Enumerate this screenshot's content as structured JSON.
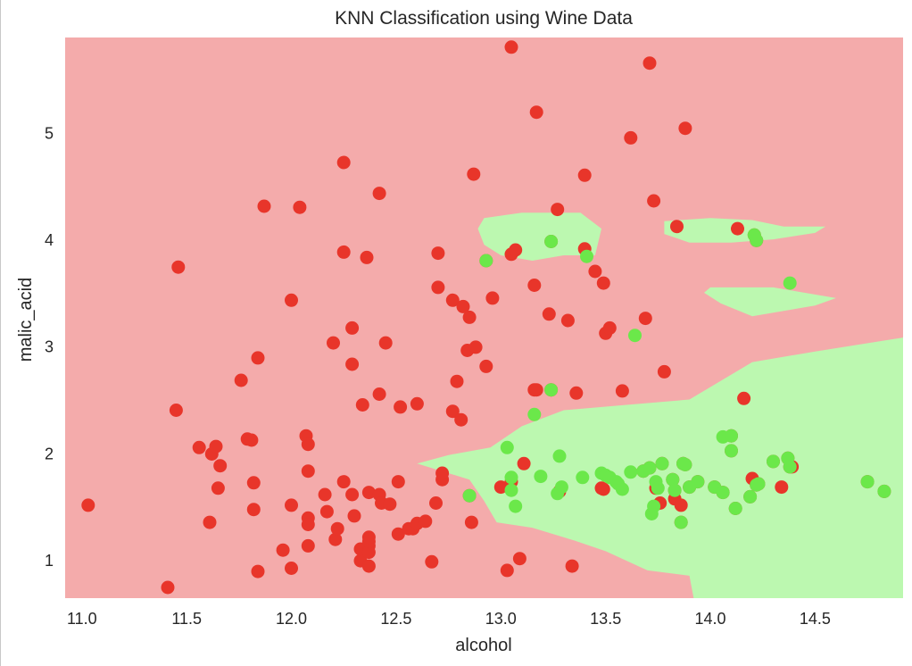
{
  "chart_data": {
    "type": "scatter",
    "title": "KNN Classification using Wine Data",
    "xlabel": "alcohol",
    "ylabel": "malic_acid",
    "xlim": [
      10.92,
      14.92
    ],
    "ylim": [
      0.64,
      5.89
    ],
    "xticks": [
      "11.0",
      "11.5",
      "12.0",
      "12.5",
      "13.0",
      "13.5",
      "14.0",
      "14.5"
    ],
    "xtick_values": [
      11.0,
      11.5,
      12.0,
      12.5,
      13.0,
      13.5,
      14.0,
      14.5
    ],
    "yticks": [
      "1",
      "2",
      "3",
      "4",
      "5"
    ],
    "ytick_values": [
      1,
      2,
      3,
      4,
      5
    ],
    "grid": false,
    "colors": {
      "region_class_a": "#f4abab",
      "region_class_b": "#bcf8b0",
      "points_class_a": "#e8352a",
      "points_class_b": "#6be84a"
    },
    "decision_regions": {
      "class_b_polygons": [
        [
          [
            12.75,
            1.98
          ],
          [
            12.95,
            2.05
          ],
          [
            13.1,
            2.25
          ],
          [
            13.3,
            2.4
          ],
          [
            13.6,
            2.45
          ],
          [
            13.9,
            2.5
          ],
          [
            14.2,
            2.85
          ],
          [
            14.5,
            2.95
          ],
          [
            14.92,
            3.08
          ],
          [
            14.92,
            0.64
          ],
          [
            13.92,
            0.64
          ],
          [
            13.9,
            0.85
          ],
          [
            13.7,
            0.9
          ],
          [
            13.5,
            1.08
          ],
          [
            13.35,
            1.18
          ],
          [
            13.15,
            1.3
          ],
          [
            12.98,
            1.35
          ],
          [
            12.92,
            1.55
          ],
          [
            12.85,
            1.75
          ],
          [
            12.6,
            1.9
          ]
        ],
        [
          [
            12.92,
            4.2
          ],
          [
            13.1,
            4.25
          ],
          [
            13.38,
            4.25
          ],
          [
            13.48,
            4.1
          ],
          [
            13.45,
            3.85
          ],
          [
            13.3,
            3.85
          ],
          [
            13.15,
            3.8
          ],
          [
            13.0,
            3.85
          ],
          [
            12.92,
            3.95
          ],
          [
            12.89,
            4.1
          ]
        ],
        [
          [
            13.78,
            4.17
          ],
          [
            14.0,
            4.2
          ],
          [
            14.2,
            4.18
          ],
          [
            14.35,
            4.12
          ],
          [
            14.55,
            4.12
          ],
          [
            14.5,
            4.06
          ],
          [
            14.3,
            4.0
          ],
          [
            14.1,
            3.97
          ],
          [
            13.9,
            3.97
          ],
          [
            13.78,
            4.05
          ]
        ],
        [
          [
            14.0,
            3.55
          ],
          [
            14.3,
            3.55
          ],
          [
            14.6,
            3.45
          ],
          [
            14.5,
            3.38
          ],
          [
            14.2,
            3.28
          ],
          [
            14.05,
            3.4
          ],
          [
            13.97,
            3.5
          ]
        ]
      ]
    },
    "series": [
      {
        "class": "a",
        "points": [
          [
            11.03,
            1.51
          ],
          [
            11.41,
            0.74
          ],
          [
            11.45,
            2.4
          ],
          [
            11.46,
            3.74
          ],
          [
            11.56,
            2.05
          ],
          [
            11.61,
            1.35
          ],
          [
            11.62,
            1.99
          ],
          [
            11.64,
            2.06
          ],
          [
            11.65,
            1.67
          ],
          [
            11.66,
            1.88
          ],
          [
            11.76,
            2.68
          ],
          [
            11.79,
            2.13
          ],
          [
            11.81,
            2.12
          ],
          [
            11.82,
            1.72
          ],
          [
            11.82,
            1.47
          ],
          [
            11.84,
            0.89
          ],
          [
            11.84,
            2.89
          ],
          [
            11.87,
            4.31
          ],
          [
            11.96,
            1.09
          ],
          [
            12.0,
            0.92
          ],
          [
            12.0,
            3.43
          ],
          [
            12.0,
            1.51
          ],
          [
            12.07,
            2.16
          ],
          [
            12.08,
            1.83
          ],
          [
            12.08,
            2.08
          ],
          [
            12.08,
            1.39
          ],
          [
            12.08,
            1.33
          ],
          [
            12.08,
            1.13
          ],
          [
            12.04,
            4.3
          ],
          [
            12.16,
            1.61
          ],
          [
            12.17,
            1.45
          ],
          [
            12.2,
            3.03
          ],
          [
            12.21,
            1.19
          ],
          [
            12.22,
            1.29
          ],
          [
            12.25,
            4.72
          ],
          [
            12.25,
            3.88
          ],
          [
            12.25,
            1.73
          ],
          [
            12.29,
            1.61
          ],
          [
            12.29,
            3.17
          ],
          [
            12.29,
            2.83
          ],
          [
            12.3,
            1.41
          ],
          [
            12.33,
            0.99
          ],
          [
            12.33,
            1.1
          ],
          [
            12.34,
            2.45
          ],
          [
            12.36,
            3.83
          ],
          [
            12.37,
            1.13
          ],
          [
            12.37,
            1.07
          ],
          [
            12.37,
            1.17
          ],
          [
            12.37,
            1.21
          ],
          [
            12.37,
            0.94
          ],
          [
            12.37,
            1.63
          ],
          [
            12.42,
            4.43
          ],
          [
            12.42,
            2.55
          ],
          [
            12.42,
            1.61
          ],
          [
            12.43,
            1.53
          ],
          [
            12.45,
            3.03
          ],
          [
            12.47,
            1.52
          ],
          [
            12.51,
            1.73
          ],
          [
            12.51,
            1.24
          ],
          [
            12.52,
            2.43
          ],
          [
            12.56,
            1.29
          ],
          [
            12.58,
            1.29
          ],
          [
            12.6,
            2.46
          ],
          [
            12.6,
            1.34
          ],
          [
            12.64,
            1.36
          ],
          [
            12.67,
            0.98
          ],
          [
            12.69,
            1.53
          ],
          [
            12.7,
            3.87
          ],
          [
            12.7,
            3.55
          ],
          [
            12.72,
            1.75
          ],
          [
            12.72,
            1.81
          ],
          [
            12.77,
            3.43
          ],
          [
            12.77,
            2.39
          ],
          [
            12.79,
            2.67
          ],
          [
            12.81,
            2.31
          ],
          [
            12.82,
            3.37
          ],
          [
            12.84,
            2.96
          ],
          [
            12.85,
            3.27
          ],
          [
            12.85,
            1.6
          ],
          [
            12.86,
            1.35
          ],
          [
            12.87,
            4.61
          ],
          [
            12.88,
            2.99
          ],
          [
            12.93,
            2.81
          ],
          [
            12.93,
            3.8
          ],
          [
            12.96,
            3.45
          ],
          [
            13.0,
            1.68
          ],
          [
            13.03,
            0.9
          ],
          [
            13.05,
            5.8
          ],
          [
            13.05,
            3.86
          ],
          [
            13.05,
            1.73
          ],
          [
            13.07,
            3.9
          ],
          [
            13.09,
            1.01
          ],
          [
            13.11,
            1.9
          ],
          [
            13.16,
            3.57
          ],
          [
            13.16,
            2.59
          ],
          [
            13.17,
            5.19
          ],
          [
            13.17,
            2.59
          ],
          [
            13.23,
            3.3
          ],
          [
            13.24,
            2.59
          ],
          [
            13.27,
            4.28
          ],
          [
            13.28,
            1.64
          ],
          [
            13.32,
            3.24
          ],
          [
            13.34,
            0.94
          ],
          [
            13.36,
            2.56
          ],
          [
            13.4,
            3.91
          ],
          [
            13.4,
            4.6
          ],
          [
            13.45,
            3.7
          ],
          [
            13.48,
            1.67
          ],
          [
            13.49,
            3.59
          ],
          [
            13.49,
            1.66
          ],
          [
            13.5,
            3.12
          ],
          [
            13.52,
            3.17
          ],
          [
            13.58,
            2.58
          ],
          [
            13.62,
            4.95
          ],
          [
            13.68,
            1.83
          ],
          [
            13.69,
            3.26
          ],
          [
            13.71,
            5.65
          ],
          [
            13.73,
            4.36
          ],
          [
            13.74,
            1.67
          ],
          [
            13.76,
            1.53
          ],
          [
            13.77,
            1.9
          ],
          [
            13.78,
            2.76
          ],
          [
            13.82,
            1.75
          ],
          [
            13.83,
            1.57
          ],
          [
            13.83,
            1.65
          ],
          [
            13.84,
            4.12
          ],
          [
            13.86,
            1.35
          ],
          [
            13.86,
            1.51
          ],
          [
            13.87,
            1.9
          ],
          [
            13.88,
            1.89
          ],
          [
            13.88,
            5.04
          ],
          [
            13.9,
            1.68
          ],
          [
            14.02,
            1.68
          ],
          [
            14.06,
            1.63
          ],
          [
            14.1,
            2.16
          ],
          [
            14.12,
            1.48
          ],
          [
            14.13,
            4.1
          ],
          [
            14.16,
            2.51
          ],
          [
            14.19,
            1.59
          ],
          [
            14.2,
            1.76
          ],
          [
            14.21,
            4.04
          ],
          [
            14.22,
            3.99
          ],
          [
            14.22,
            1.7
          ],
          [
            14.23,
            1.71
          ],
          [
            14.3,
            1.92
          ],
          [
            14.34,
            1.68
          ],
          [
            14.37,
            1.95
          ],
          [
            14.38,
            1.87
          ],
          [
            14.39,
            1.87
          ],
          [
            14.75,
            1.73
          ],
          [
            14.83,
            1.64
          ],
          [
            14.1,
            2.02
          ],
          [
            13.24,
            3.98
          ],
          [
            13.94,
            1.73
          ],
          [
            13.71,
            1.86
          ]
        ]
      },
      {
        "class": "b",
        "points": [
          [
            12.85,
            1.6
          ],
          [
            12.93,
            3.8
          ],
          [
            13.03,
            2.05
          ],
          [
            13.05,
            1.77
          ],
          [
            13.05,
            1.65
          ],
          [
            13.07,
            1.5
          ],
          [
            13.16,
            2.36
          ],
          [
            13.19,
            1.78
          ],
          [
            13.24,
            2.59
          ],
          [
            13.24,
            3.98
          ],
          [
            13.27,
            1.62
          ],
          [
            13.28,
            1.97
          ],
          [
            13.29,
            1.68
          ],
          [
            13.39,
            1.77
          ],
          [
            13.41,
            3.84
          ],
          [
            13.48,
            1.81
          ],
          [
            13.5,
            1.79
          ],
          [
            13.52,
            1.77
          ],
          [
            13.55,
            1.73
          ],
          [
            13.56,
            1.71
          ],
          [
            13.58,
            1.66
          ],
          [
            13.62,
            1.82
          ],
          [
            13.64,
            3.1
          ],
          [
            13.68,
            1.83
          ],
          [
            13.71,
            1.86
          ],
          [
            13.72,
            1.43
          ],
          [
            13.73,
            1.5
          ],
          [
            13.74,
            1.73
          ],
          [
            13.75,
            1.67
          ],
          [
            13.77,
            1.9
          ],
          [
            13.82,
            1.75
          ],
          [
            13.83,
            1.65
          ],
          [
            13.86,
            1.35
          ],
          [
            13.87,
            1.9
          ],
          [
            13.88,
            1.89
          ],
          [
            13.9,
            1.68
          ],
          [
            13.94,
            1.73
          ],
          [
            14.02,
            1.68
          ],
          [
            14.06,
            1.63
          ],
          [
            14.06,
            2.15
          ],
          [
            14.1,
            2.16
          ],
          [
            14.12,
            1.48
          ],
          [
            14.1,
            2.02
          ],
          [
            14.19,
            1.59
          ],
          [
            14.21,
            4.04
          ],
          [
            14.22,
            3.99
          ],
          [
            14.22,
            1.7
          ],
          [
            14.23,
            1.71
          ],
          [
            14.3,
            1.92
          ],
          [
            14.37,
            1.95
          ],
          [
            14.38,
            1.87
          ],
          [
            14.38,
            3.59
          ],
          [
            14.75,
            1.73
          ],
          [
            14.83,
            1.64
          ]
        ]
      }
    ]
  }
}
